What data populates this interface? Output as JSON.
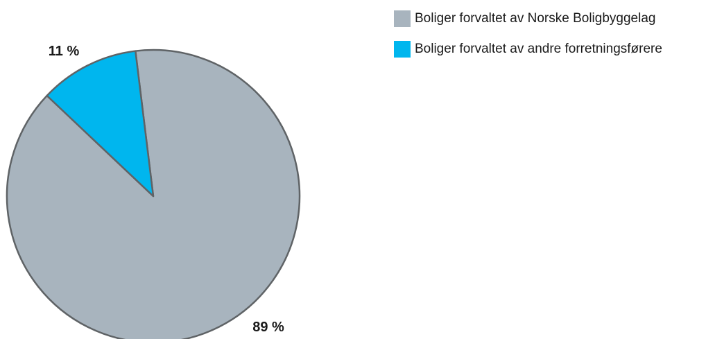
{
  "chart_data": {
    "type": "pie",
    "start_angle_deg": -7,
    "slices": [
      {
        "name": "Boliger forvaltet av Norske Boligbyggelag",
        "value": 89,
        "label": "89 %",
        "color": "#a8b4be"
      },
      {
        "name": "Boliger forvaltet av andre forretningsførere",
        "value": 11,
        "label": "11 %",
        "color": "#00b6ee"
      }
    ],
    "legend_position": "top-right",
    "stroke_color": "#5f6366"
  }
}
